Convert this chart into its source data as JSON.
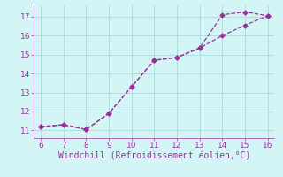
{
  "xlabel": "Windchill (Refroidissement éolien,°C)",
  "line1_x": [
    6,
    7,
    8,
    9,
    10,
    11,
    12,
    13,
    14,
    15,
    16
  ],
  "line1_y": [
    11.2,
    11.3,
    11.05,
    11.9,
    13.3,
    14.7,
    14.85,
    15.35,
    17.1,
    17.25,
    17.05
  ],
  "line2_x": [
    6,
    7,
    8,
    9,
    10,
    11,
    12,
    13,
    14,
    15,
    16
  ],
  "line2_y": [
    11.2,
    11.3,
    11.05,
    11.9,
    13.3,
    14.7,
    14.85,
    15.35,
    16.0,
    16.55,
    17.05
  ],
  "line_color": "#993399",
  "marker": "D",
  "markersize": 2.5,
  "xlim": [
    5.7,
    16.3
  ],
  "ylim": [
    10.6,
    17.6
  ],
  "yticks": [
    11,
    12,
    13,
    14,
    15,
    16,
    17
  ],
  "xticks": [
    6,
    7,
    8,
    9,
    10,
    11,
    12,
    13,
    14,
    15,
    16
  ],
  "background_color": "#d4f5f5",
  "grid_color": "#b0dede",
  "tick_color": "#993399",
  "label_color": "#993399",
  "tick_fontsize": 6.5,
  "xlabel_fontsize": 7.0,
  "linewidth": 0.9
}
